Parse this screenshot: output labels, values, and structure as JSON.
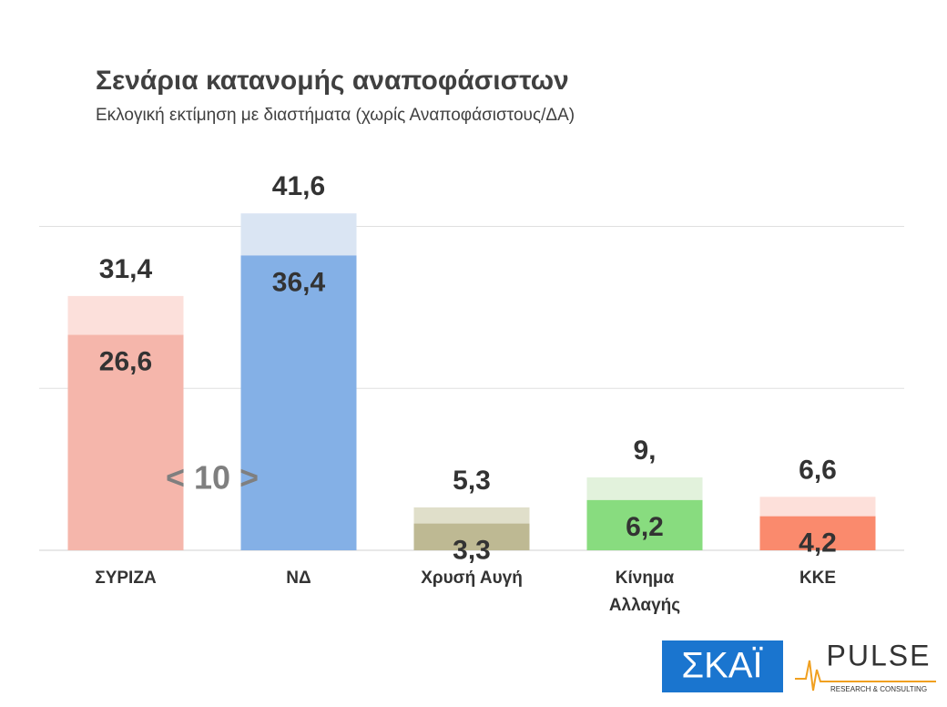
{
  "chart_data": {
    "type": "bar",
    "title": "Σενάρια κατανομής αναποφάσιστων",
    "subtitle": "Εκλογική εκτίμηση με διαστήματα (χωρίς Αναποφάσιστους/ΔΑ)",
    "categories": [
      "ΣΥΡΙΖΑ",
      "ΝΔ",
      "Χρυσή Αυγή",
      "Κίνημα Αλλαγής",
      "ΚΚΕ"
    ],
    "series": [
      {
        "colors": [
          "#fce0db",
          "#dae5f3",
          "#e0dfca",
          "#e2f2dc",
          "#fde0da"
        ],
        "values": [
          31.4,
          41.6,
          5.3,
          9,
          6.6
        ],
        "value_labels": [
          "31,4",
          "41,6",
          "5,3",
          "9,",
          "6,6"
        ]
      },
      {
        "colors": [
          "#f5b6ab",
          "#84b0e6",
          "#beb993",
          "#88dc7f",
          "#fa8a6d"
        ],
        "values": [
          26.6,
          36.4,
          3.3,
          6.2,
          4.2
        ],
        "value_labels": [
          "26,6",
          "36,4",
          "3,3",
          "6,2",
          "4,2"
        ]
      }
    ],
    "ylim": [
      0,
      45
    ],
    "yticks": [
      0,
      20,
      40
    ],
    "grid": true,
    "annotation": "< 10 >",
    "logos": [
      "ΣΚΑΪ",
      "PULSE",
      "RESEARCH & CONSULTING"
    ]
  }
}
